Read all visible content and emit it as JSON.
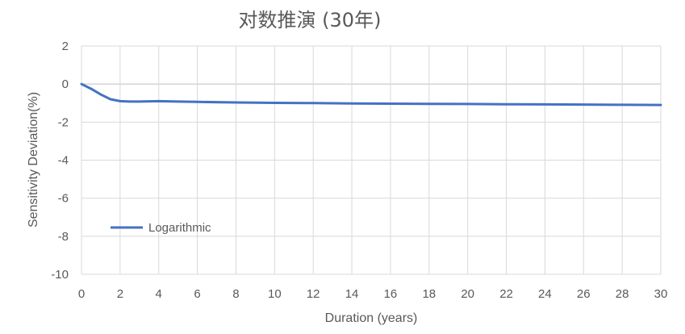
{
  "chart_data": {
    "type": "line",
    "title": "对数推演 (30年)",
    "xlabel": "Duration (years)",
    "ylabel": "Sensitivity Deviation(%)",
    "xlim": [
      0,
      30
    ],
    "ylim": [
      -10,
      2
    ],
    "x_ticks": [
      0,
      2,
      4,
      6,
      8,
      10,
      12,
      14,
      16,
      18,
      20,
      22,
      24,
      26,
      28,
      30
    ],
    "y_ticks": [
      2,
      0,
      -2,
      -4,
      -6,
      -8,
      -10
    ],
    "x_grid_step": 2,
    "grid": true,
    "legend_position": "bottom-left",
    "series": [
      {
        "name": "Logarithmic",
        "color": "#4472c4",
        "x": [
          0,
          0.5,
          1,
          1.5,
          2,
          2.5,
          3,
          4,
          5,
          6,
          8,
          10,
          12,
          14,
          16,
          18,
          20,
          22,
          24,
          26,
          28,
          30
        ],
        "y": [
          0,
          -0.25,
          -0.55,
          -0.8,
          -0.9,
          -0.92,
          -0.92,
          -0.9,
          -0.92,
          -0.94,
          -0.97,
          -0.99,
          -1.0,
          -1.02,
          -1.03,
          -1.04,
          -1.05,
          -1.06,
          -1.07,
          -1.08,
          -1.09,
          -1.1
        ]
      }
    ]
  }
}
